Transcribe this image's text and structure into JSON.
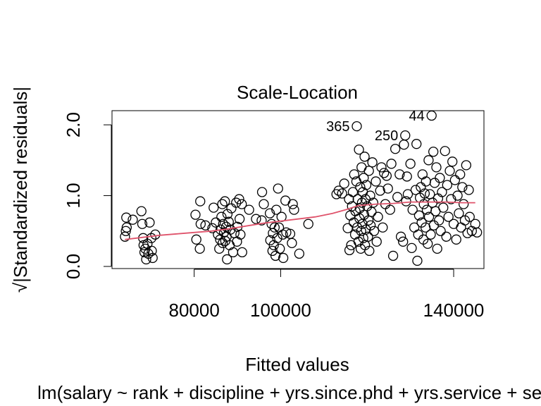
{
  "chart_data": {
    "type": "scatter",
    "title": "Scale-Location",
    "xlabel": "Fitted values",
    "ylabel": "√|Standardized residuals|",
    "subtitle": "lm(salary ~ rank + discipline + yrs.since.phd + yrs.service + sex)",
    "xlim": [
      61000,
      147000
    ],
    "ylim": [
      -0.03,
      2.2
    ],
    "x_ticks": [
      80000,
      100000,
      140000
    ],
    "x_tick_labels": [
      "80000",
      "100000",
      "140000"
    ],
    "y_ticks": [
      0.0,
      1.0,
      2.0
    ],
    "y_tick_labels": [
      "0.0",
      "1.0",
      "2.0"
    ],
    "grid": false,
    "point_color": "#000000",
    "smooth_color": "#DF536B",
    "points": [
      [
        64000,
        0.42
      ],
      [
        64200,
        0.5
      ],
      [
        64400,
        0.55
      ],
      [
        64300,
        0.69
      ],
      [
        65800,
        0.66
      ],
      [
        67800,
        0.78
      ],
      [
        68000,
        0.6
      ],
      [
        68200,
        0.4
      ],
      [
        68300,
        0.3
      ],
      [
        68500,
        0.2
      ],
      [
        68700,
        0.25
      ],
      [
        68900,
        0.1
      ],
      [
        69200,
        0.32
      ],
      [
        69400,
        0.18
      ],
      [
        69700,
        0.62
      ],
      [
        70100,
        0.4
      ],
      [
        70200,
        0.22
      ],
      [
        70400,
        0.12
      ],
      [
        71000,
        0.45
      ],
      [
        80300,
        0.73
      ],
      [
        80500,
        0.38
      ],
      [
        81300,
        0.25
      ],
      [
        81400,
        0.92
      ],
      [
        81500,
        0.6
      ],
      [
        82600,
        0.58
      ],
      [
        84200,
        0.54
      ],
      [
        84500,
        0.83
      ],
      [
        85000,
        0.62
      ],
      [
        85500,
        0.45
      ],
      [
        85800,
        0.25
      ],
      [
        86000,
        0.38
      ],
      [
        86100,
        0.52
      ],
      [
        86300,
        0.7
      ],
      [
        86500,
        0.88
      ],
      [
        86600,
        0.33
      ],
      [
        86700,
        0.6
      ],
      [
        86900,
        0.48
      ],
      [
        87100,
        0.92
      ],
      [
        87200,
        0.36
      ],
      [
        87400,
        0.56
      ],
      [
        87500,
        0.42
      ],
      [
        87600,
        0.1
      ],
      [
        87700,
        0.74
      ],
      [
        88000,
        0.63
      ],
      [
        88200,
        0.3
      ],
      [
        88400,
        0.52
      ],
      [
        88600,
        0.82
      ],
      [
        89000,
        0.2
      ],
      [
        89300,
        0.47
      ],
      [
        89700,
        0.9
      ],
      [
        89900,
        0.35
      ],
      [
        90000,
        0.56
      ],
      [
        90400,
        0.95
      ],
      [
        90500,
        0.67
      ],
      [
        90700,
        0.45
      ],
      [
        91000,
        0.88
      ],
      [
        91100,
        0.2
      ],
      [
        92700,
        0.8
      ],
      [
        94300,
        0.67
      ],
      [
        95600,
        0.65
      ],
      [
        95700,
        1.05
      ],
      [
        96100,
        0.88
      ],
      [
        97500,
        0.75
      ],
      [
        97600,
        0.37
      ],
      [
        97900,
        0.6
      ],
      [
        98100,
        0.22
      ],
      [
        98200,
        0.47
      ],
      [
        98400,
        0.3
      ],
      [
        98600,
        0.55
      ],
      [
        98800,
        0.15
      ],
      [
        99000,
        0.8
      ],
      [
        99200,
        0.4
      ],
      [
        99400,
        1.1
      ],
      [
        99600,
        0.55
      ],
      [
        99800,
        0.25
      ],
      [
        100200,
        0.7
      ],
      [
        100500,
        0.45
      ],
      [
        100600,
        0.12
      ],
      [
        101100,
        0.93
      ],
      [
        101300,
        0.48
      ],
      [
        102200,
        0.46
      ],
      [
        102600,
        0.33
      ],
      [
        102800,
        0.88
      ],
      [
        103100,
        0.8
      ],
      [
        104300,
        0.18
      ],
      [
        106400,
        0.6
      ],
      [
        112900,
        1.02
      ],
      [
        113400,
        1.07
      ],
      [
        114200,
        1.03
      ],
      [
        114700,
        1.17
      ],
      [
        115500,
        0.54
      ],
      [
        115800,
        0.95
      ],
      [
        115900,
        0.23
      ],
      [
        116100,
        0.72
      ],
      [
        116300,
        0.3
      ],
      [
        116500,
        0.85
      ],
      [
        116700,
        1.05
      ],
      [
        116900,
        0.62
      ],
      [
        117000,
        1.3
      ],
      [
        117200,
        0.45
      ],
      [
        117300,
        0.78
      ],
      [
        117500,
        1.2
      ],
      [
        117600,
        1.98
      ],
      [
        117700,
        0.55
      ],
      [
        117800,
        0.95
      ],
      [
        118000,
        0.35
      ],
      [
        118100,
        1.65
      ],
      [
        118200,
        0.68
      ],
      [
        118300,
        0.82
      ],
      [
        118400,
        1.12
      ],
      [
        118500,
        0.25
      ],
      [
        118600,
        0.5
      ],
      [
        118700,
        1.4
      ],
      [
        118800,
        0.9
      ],
      [
        118900,
        0.6
      ],
      [
        119000,
        1.05
      ],
      [
        119100,
        0.4
      ],
      [
        119200,
        1.25
      ],
      [
        119300,
        0.73
      ],
      [
        119400,
        1.55
      ],
      [
        119500,
        0.3
      ],
      [
        119600,
        0.95
      ],
      [
        119700,
        0.52
      ],
      [
        119800,
        1.15
      ],
      [
        120000,
        0.85
      ],
      [
        120200,
        0.42
      ],
      [
        120300,
        0.65
      ],
      [
        120400,
        1.35
      ],
      [
        120500,
        0.22
      ],
      [
        120700,
        1.0
      ],
      [
        120800,
        0.58
      ],
      [
        121000,
        0.77
      ],
      [
        121200,
        1.47
      ],
      [
        121400,
        0.9
      ],
      [
        121600,
        0.5
      ],
      [
        122000,
        1.2
      ],
      [
        122200,
        0.35
      ],
      [
        122500,
        0.7
      ],
      [
        123000,
        1.07
      ],
      [
        123300,
        1.4
      ],
      [
        123600,
        0.55
      ],
      [
        123900,
        1.32
      ],
      [
        124200,
        0.88
      ],
      [
        124500,
        1.28
      ],
      [
        124800,
        1.1
      ],
      [
        125300,
        0.8
      ],
      [
        125600,
        1.45
      ],
      [
        126000,
        0.15
      ],
      [
        126500,
        1.66
      ],
      [
        127000,
        0.98
      ],
      [
        127500,
        1.3
      ],
      [
        127800,
        0.42
      ],
      [
        128300,
        0.35
      ],
      [
        128500,
        1.72
      ],
      [
        128800,
        1.85
      ],
      [
        129000,
        0.92
      ],
      [
        129200,
        1.27
      ],
      [
        129400,
        1.02
      ],
      [
        130000,
        1.45
      ],
      [
        130300,
        0.26
      ],
      [
        130500,
        0.8
      ],
      [
        130900,
        0.55
      ],
      [
        131200,
        1.08
      ],
      [
        131400,
        1.73
      ],
      [
        131600,
        0.08
      ],
      [
        131800,
        0.45
      ],
      [
        132000,
        0.72
      ],
      [
        132200,
        0.97
      ],
      [
        132400,
        1.12
      ],
      [
        132600,
        0.62
      ],
      [
        132800,
        1.3
      ],
      [
        133000,
        0.38
      ],
      [
        133100,
        0.88
      ],
      [
        133300,
        1.03
      ],
      [
        133500,
        0.55
      ],
      [
        133600,
        1.2
      ],
      [
        133800,
        0.8
      ],
      [
        134000,
        0.32
      ],
      [
        134200,
        1.5
      ],
      [
        134300,
        0.7
      ],
      [
        134500,
        1.02
      ],
      [
        134700,
        0.45
      ],
      [
        134900,
        2.13
      ],
      [
        135100,
        0.9
      ],
      [
        135300,
        1.62
      ],
      [
        135400,
        0.58
      ],
      [
        135600,
        1.18
      ],
      [
        135800,
        0.78
      ],
      [
        136000,
        1.4
      ],
      [
        136200,
        0.25
      ],
      [
        136400,
        0.96
      ],
      [
        136600,
        0.65
      ],
      [
        136800,
        1.25
      ],
      [
        137000,
        0.5
      ],
      [
        137300,
        1.05
      ],
      [
        137600,
        0.83
      ],
      [
        138000,
        1.63
      ],
      [
        138300,
        0.42
      ],
      [
        138500,
        1.15
      ],
      [
        138800,
        0.7
      ],
      [
        139100,
        1.35
      ],
      [
        139400,
        0.95
      ],
      [
        139700,
        1.48
      ],
      [
        140000,
        0.6
      ],
      [
        140300,
        1.22
      ],
      [
        140600,
        0.38
      ],
      [
        140900,
        1.0
      ],
      [
        141200,
        0.75
      ],
      [
        141500,
        1.3
      ],
      [
        141700,
        0.55
      ],
      [
        142000,
        1.12
      ],
      [
        142300,
        0.88
      ],
      [
        142600,
        0.65
      ],
      [
        142900,
        1.43
      ],
      [
        143200,
        0.47
      ],
      [
        143500,
        1.08
      ],
      [
        143700,
        0.7
      ],
      [
        144200,
        0.5
      ],
      [
        145000,
        0.6
      ],
      [
        145400,
        0.48
      ]
    ],
    "point_labels": [
      {
        "text": "365",
        "x": 117600,
        "y": 1.98
      },
      {
        "text": "250",
        "x": 128800,
        "y": 1.85
      },
      {
        "text": "44",
        "x": 134900,
        "y": 2.13
      }
    ],
    "smooth_line": [
      [
        64000,
        0.38
      ],
      [
        68000,
        0.41
      ],
      [
        72000,
        0.44
      ],
      [
        76000,
        0.46
      ],
      [
        80000,
        0.48
      ],
      [
        84000,
        0.5
      ],
      [
        88000,
        0.53
      ],
      [
        92000,
        0.57
      ],
      [
        96000,
        0.61
      ],
      [
        100000,
        0.64
      ],
      [
        104000,
        0.67
      ],
      [
        108000,
        0.7
      ],
      [
        112000,
        0.75
      ],
      [
        115000,
        0.8
      ],
      [
        118000,
        0.86
      ],
      [
        122000,
        0.88
      ],
      [
        126000,
        0.89
      ],
      [
        130000,
        0.91
      ],
      [
        134000,
        0.91
      ],
      [
        138000,
        0.91
      ],
      [
        142000,
        0.9
      ],
      [
        145000,
        0.9
      ]
    ]
  }
}
